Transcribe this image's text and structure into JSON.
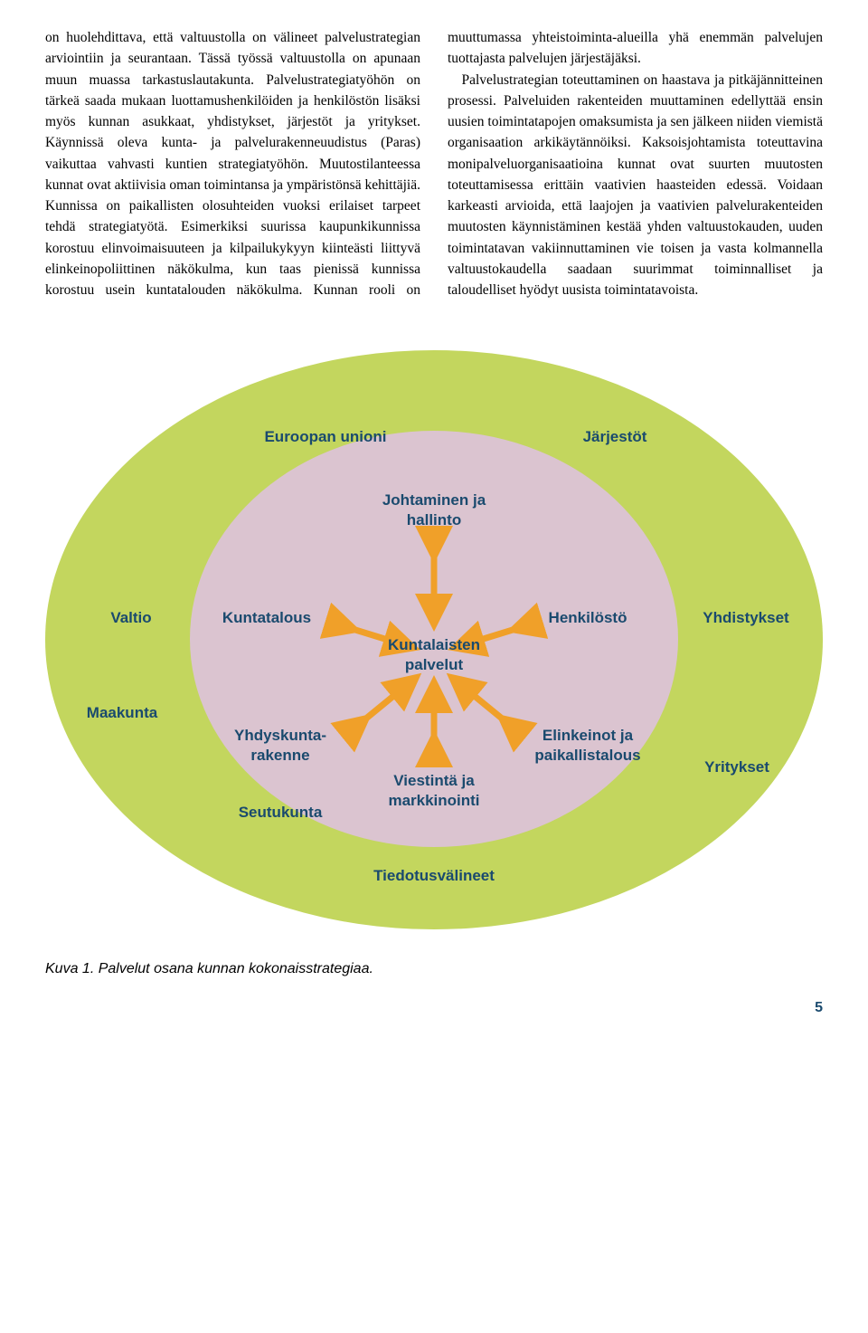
{
  "body_text": "on huolehdittava, että valtuustolla on välineet palvelustrategian arviointiin ja seurantaan. Tässä työssä valtuustolla on apunaan muun muassa tarkastuslautakunta. Palvelustrategia­työhön on tärkeä saada mukaan luottamus­henkilöiden ja henkilöstön lisäksi myös kunnan asukkaat, yhdistykset, järjestöt ja yritykset. Käynnissä oleva kunta- ja palvelurakenneuudistus (Paras) vaikuttaa vahvasti kuntien strategiatyöhön. Muutostilanteessa kunnat ovat aktiivisia oman toimintansa ja ympäristönsä kehittäjiä. Kunnissa on paikallisten olosuhteiden vuoksi erilaiset tarpeet tehdä strategiatyötä. Esimerkiksi suurissa kaupunki­kunnissa korostuu elinvoimaisuuteen ja kilpailukykyyn kiinteästi liittyvä elinkeinopoliittinen näkökulma, kun taas pienissä kunnissa korostuu usein kuntatalouden näkökulma. Kunnan rooli on muuttumassa yhteistoiminta-alueilla yhä enemmän palvelujen tuottajasta palvelujen järjestäjäksi.\n Palvelustrategian toteuttaminen on haastava ja pitkäjännitteinen prosessi. Palveluiden rakenteiden muuttaminen edellyttää ensin uusien toimintatapojen omaksumista ja sen jälkeen niiden viemistä organisaation arkikäytännöiksi. Kaksoisjohtamista toteuttavina monipalveluorganisaatioina kunnat ovat suurten muutosten toteuttamisessa erittäin vaativien haasteiden edessä. Voidaan karkeasti arvioida, että laajojen ja vaativien palvelurakenteiden muutosten käynnistäminen kestää yhden valtuustokauden, uuden toimintatavan vakiinnuttaminen vie toisen ja vasta kolmannella valtuustokaudella saadaan suurimmat toiminnalliset ja taloudelliset hyödyt uusista toimintatavoista.",
  "diagram": {
    "outer_color": "#c3d65e",
    "inner_color": "#dbc4d0",
    "label_color": "#1a4a6e",
    "arrow_color": "#f0a029",
    "center": "Kuntalaisten\npalvelut",
    "inner_labels": {
      "top": "Johtaminen ja\nhallinto",
      "left": "Kuntatalous",
      "right": "Henkilöstö",
      "bottom_left": "Yhdyskunta-\nrakenne",
      "bottom_right": "Elinkeinot ja\npaikallistalous",
      "bottom": "Viestintä ja\nmarkkinointi"
    },
    "outer_labels": {
      "eu": "Euroopan unioni",
      "jarjestot": "Järjestöt",
      "valtio": "Valtio",
      "yhdistykset": "Yhdistykset",
      "maakunta": "Maakunta",
      "seutukunta": "Seutukunta",
      "yritykset": "Yritykset",
      "tiedotus": "Tiedotusvälineet"
    }
  },
  "caption": "Kuva 1. Palvelut osana kunnan kokonaisstrategiaa.",
  "page_number": "5"
}
